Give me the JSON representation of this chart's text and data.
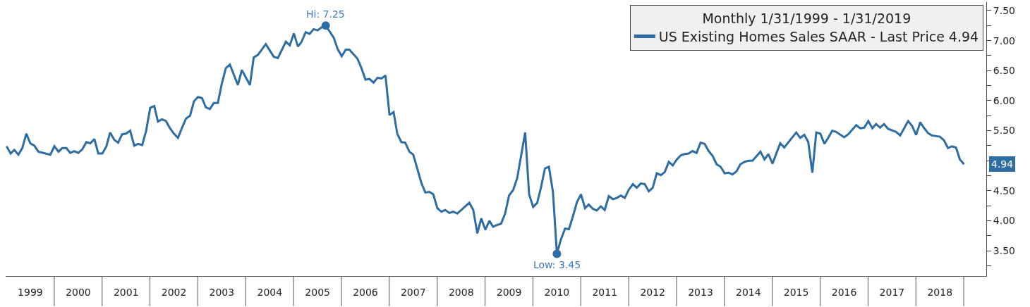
{
  "chart_data": {
    "type": "line",
    "x": [
      "1999-01",
      "1999-02",
      "1999-03",
      "1999-04",
      "1999-05",
      "1999-06",
      "1999-07",
      "1999-08",
      "1999-09",
      "1999-12",
      "2000-01",
      "2000-02",
      "2000-03",
      "2000-04",
      "2000-05",
      "2000-06",
      "2000-07",
      "2000-08",
      "2000-09",
      "2000-10",
      "2000-11",
      "2000-12",
      "2001-01",
      "2001-02",
      "2001-03",
      "2001-04",
      "2001-05",
      "2001-06",
      "2001-07",
      "2001-08",
      "2001-09",
      "2001-10",
      "2001-11",
      "2001-12",
      "2002-01",
      "2002-02",
      "2002-03",
      "2002-04",
      "2002-05",
      "2002-06",
      "2002-07",
      "2002-08",
      "2002-09",
      "2002-10",
      "2002-11",
      "2002-12",
      "2003-01",
      "2003-02",
      "2003-03",
      "2003-04",
      "2003-05",
      "2003-06",
      "2003-07",
      "2003-08",
      "2003-09",
      "2003-11",
      "2003-12",
      "2004-02",
      "2004-03",
      "2004-04",
      "2004-06",
      "2004-08",
      "2004-09",
      "2004-11",
      "2004-12",
      "2005-01",
      "2005-02",
      "2005-03",
      "2005-04",
      "2005-05",
      "2005-06",
      "2005-07",
      "2005-08",
      "2005-09",
      "2005-11",
      "2005-12",
      "2006-01",
      "2006-02",
      "2006-03",
      "2006-05",
      "2006-06",
      "2006-07",
      "2006-08",
      "2006-09",
      "2006-10",
      "2006-11",
      "2006-12",
      "2007-01",
      "2007-02",
      "2007-03",
      "2007-04",
      "2007-05",
      "2007-06",
      "2007-07",
      "2007-09",
      "2007-10",
      "2007-11",
      "2007-12",
      "2008-01",
      "2008-02",
      "2008-03",
      "2008-04",
      "2008-05",
      "2008-06",
      "2008-09",
      "2008-10",
      "2008-11",
      "2008-12",
      "2009-01",
      "2009-02",
      "2009-03",
      "2009-04",
      "2009-05",
      "2009-06",
      "2009-07",
      "2009-08",
      "2009-09",
      "2009-11",
      "2009-12",
      "2010-01",
      "2010-02",
      "2010-03",
      "2010-04",
      "2010-05",
      "2010-06",
      "2010-07",
      "2010-08",
      "2010-09",
      "2010-10",
      "2010-11",
      "2010-12",
      "2011-01",
      "2011-02",
      "2011-03",
      "2011-04",
      "2011-05",
      "2011-06",
      "2011-07",
      "2011-08",
      "2011-09",
      "2011-10",
      "2011-11",
      "2011-12",
      "2012-01",
      "2012-02",
      "2012-03",
      "2012-04",
      "2012-05",
      "2012-06",
      "2012-07",
      "2012-08",
      "2012-09",
      "2012-10",
      "2012-11",
      "2012-12",
      "2013-01",
      "2013-02",
      "2013-03",
      "2013-04",
      "2013-05",
      "2013-06",
      "2013-07",
      "2013-08",
      "2013-09",
      "2013-10",
      "2013-11",
      "2013-12",
      "2014-01",
      "2014-02",
      "2014-03",
      "2014-04",
      "2014-05",
      "2014-06",
      "2014-07",
      "2014-08",
      "2014-10",
      "2014-11",
      "2014-12",
      "2015-01",
      "2015-02",
      "2015-03",
      "2015-04",
      "2015-07",
      "2015-08",
      "2015-09",
      "2015-10",
      "2015-11",
      "2015-12",
      "2016-01",
      "2016-02",
      "2016-03",
      "2016-04",
      "2016-05",
      "2016-07",
      "2016-08",
      "2016-10",
      "2016-11",
      "2016-12",
      "2017-01",
      "2017-02",
      "2017-03",
      "2017-04",
      "2017-05",
      "2017-06",
      "2017-08",
      "2017-09",
      "2017-11",
      "2017-12",
      "2018-01",
      "2018-02",
      "2018-03",
      "2018-04",
      "2018-05",
      "2018-07",
      "2018-08",
      "2018-09",
      "2018-10",
      "2018-11",
      "2018-12",
      "2019-01"
    ],
    "series": [
      {
        "name": "US Existing Homes Sales SAAR - Last Price 4.94",
        "color": "#2e6da4",
        "values": [
          5.24,
          5.12,
          5.18,
          5.1,
          5.21,
          5.45,
          5.29,
          5.25,
          5.15,
          5.1,
          5.24,
          5.15,
          5.21,
          5.21,
          5.13,
          5.16,
          5.13,
          5.19,
          5.31,
          5.29,
          5.36,
          5.12,
          5.12,
          5.24,
          5.47,
          5.35,
          5.3,
          5.44,
          5.45,
          5.5,
          5.25,
          5.28,
          5.26,
          5.5,
          5.88,
          5.91,
          5.65,
          5.69,
          5.66,
          5.54,
          5.45,
          5.38,
          5.55,
          5.7,
          5.75,
          5.99,
          6.06,
          6.04,
          5.89,
          5.86,
          5.96,
          5.96,
          6.28,
          6.54,
          6.6,
          6.26,
          6.51,
          6.26,
          6.72,
          6.76,
          6.94,
          6.73,
          6.71,
          6.98,
          6.92,
          7.12,
          6.9,
          6.98,
          7.14,
          7.11,
          7.19,
          7.17,
          7.22,
          7.25,
          7.05,
          6.86,
          6.74,
          6.85,
          6.85,
          6.7,
          6.54,
          6.35,
          6.36,
          6.3,
          6.38,
          6.37,
          6.42,
          5.76,
          5.81,
          5.45,
          5.31,
          5.3,
          5.15,
          5.1,
          4.63,
          4.47,
          4.48,
          4.44,
          4.21,
          4.15,
          4.18,
          4.13,
          4.15,
          4.12,
          4.3,
          4.18,
          3.79,
          4.04,
          3.85,
          4.0,
          3.9,
          3.93,
          3.95,
          4.12,
          4.42,
          4.51,
          4.71,
          5.47,
          4.44,
          4.23,
          4.3,
          4.55,
          4.87,
          4.9,
          4.48,
          3.45,
          3.69,
          3.87,
          3.86,
          4.08,
          4.31,
          4.44,
          4.21,
          4.27,
          4.2,
          4.17,
          4.24,
          4.18,
          4.41,
          4.36,
          4.38,
          4.42,
          4.38,
          4.52,
          4.61,
          4.55,
          4.62,
          4.61,
          4.49,
          4.55,
          4.79,
          4.76,
          4.81,
          4.98,
          4.92,
          5.02,
          5.09,
          5.11,
          5.12,
          5.16,
          5.13,
          5.3,
          5.28,
          5.16,
          5.08,
          4.94,
          4.9,
          4.79,
          4.8,
          4.77,
          4.82,
          4.94,
          4.98,
          5.0,
          5.0,
          5.15,
          5.02,
          5.11,
          4.95,
          5.13,
          5.29,
          5.22,
          5.47,
          5.38,
          5.43,
          5.31,
          4.8,
          5.47,
          5.45,
          5.28,
          5.38,
          5.5,
          5.48,
          5.39,
          5.44,
          5.59,
          5.54,
          5.55,
          5.66,
          5.54,
          5.61,
          5.55,
          5.61,
          5.53,
          5.48,
          5.42,
          5.66,
          5.58,
          5.43,
          5.64,
          5.55,
          5.46,
          5.42,
          5.4,
          5.34,
          5.21,
          5.24,
          5.22,
          5.02,
          4.94
        ]
      }
    ],
    "legend_title": "Monthly 1/31/1999 - 1/31/2019",
    "legend": "top right",
    "marker": "none",
    "line_style": "solid",
    "annotations": [
      {
        "text": "Hi: 7.25",
        "x": "2005-09",
        "y": 7.25
      },
      {
        "text": "Low: 3.45",
        "x": "2010-07",
        "y": 3.45
      },
      "4.94"
    ],
    "xlim": [
      "1998-12-25",
      "2019-06-20"
    ],
    "xticks": [
      {
        "value": "1999-07-01",
        "label": "1999"
      },
      {
        "value": "2000-07-01",
        "label": "2000"
      },
      {
        "value": "2001-07-01",
        "label": "2001"
      },
      {
        "value": "2002-07-01",
        "label": "2002"
      },
      {
        "value": "2003-07-01",
        "label": "2003"
      },
      {
        "value": "2004-07-01",
        "label": "2004"
      },
      {
        "value": "2005-07-01",
        "label": "2005"
      },
      {
        "value": "2006-07-01",
        "label": "2006"
      },
      {
        "value": "2007-07-01",
        "label": "2007"
      },
      {
        "value": "2008-07-01",
        "label": "2008"
      },
      {
        "value": "2009-07-01",
        "label": "2009"
      },
      {
        "value": "2010-07-01",
        "label": "2010"
      },
      {
        "value": "2011-07-01",
        "label": "2011"
      },
      {
        "value": "2012-07-01",
        "label": "2012"
      },
      {
        "value": "2013-07-01",
        "label": "2013"
      },
      {
        "value": "2014-07-01",
        "label": "2014"
      },
      {
        "value": "2015-07-01",
        "label": "2015"
      },
      {
        "value": "2016-07-01",
        "label": "2016"
      },
      {
        "value": "2017-07-01",
        "label": "2017"
      },
      {
        "value": "2018-07-01",
        "label": "2018"
      }
    ],
    "ylim": [
      3.08,
      7.64
    ],
    "yticks": [
      {
        "value": 3.25,
        "label": null
      },
      {
        "value": 3.5,
        "label": "3.50"
      },
      {
        "value": 3.75,
        "label": null
      },
      {
        "value": 4.0,
        "label": "4.00"
      },
      {
        "value": 4.25,
        "label": null
      },
      {
        "value": 4.5,
        "label": "4.50"
      },
      {
        "value": 4.75,
        "label": null
      },
      {
        "value": 5.0,
        "label": null
      },
      {
        "value": 5.25,
        "label": null
      },
      {
        "value": 5.5,
        "label": "5.50"
      },
      {
        "value": 5.75,
        "label": null
      },
      {
        "value": 6.0,
        "label": "6.00"
      },
      {
        "value": 6.25,
        "label": null
      },
      {
        "value": 6.5,
        "label": "6.50"
      },
      {
        "value": 6.75,
        "label": null
      },
      {
        "value": 7.0,
        "label": "7.00"
      },
      {
        "value": 7.25,
        "label": null
      },
      {
        "value": 7.5,
        "label": "7.50"
      }
    ]
  }
}
